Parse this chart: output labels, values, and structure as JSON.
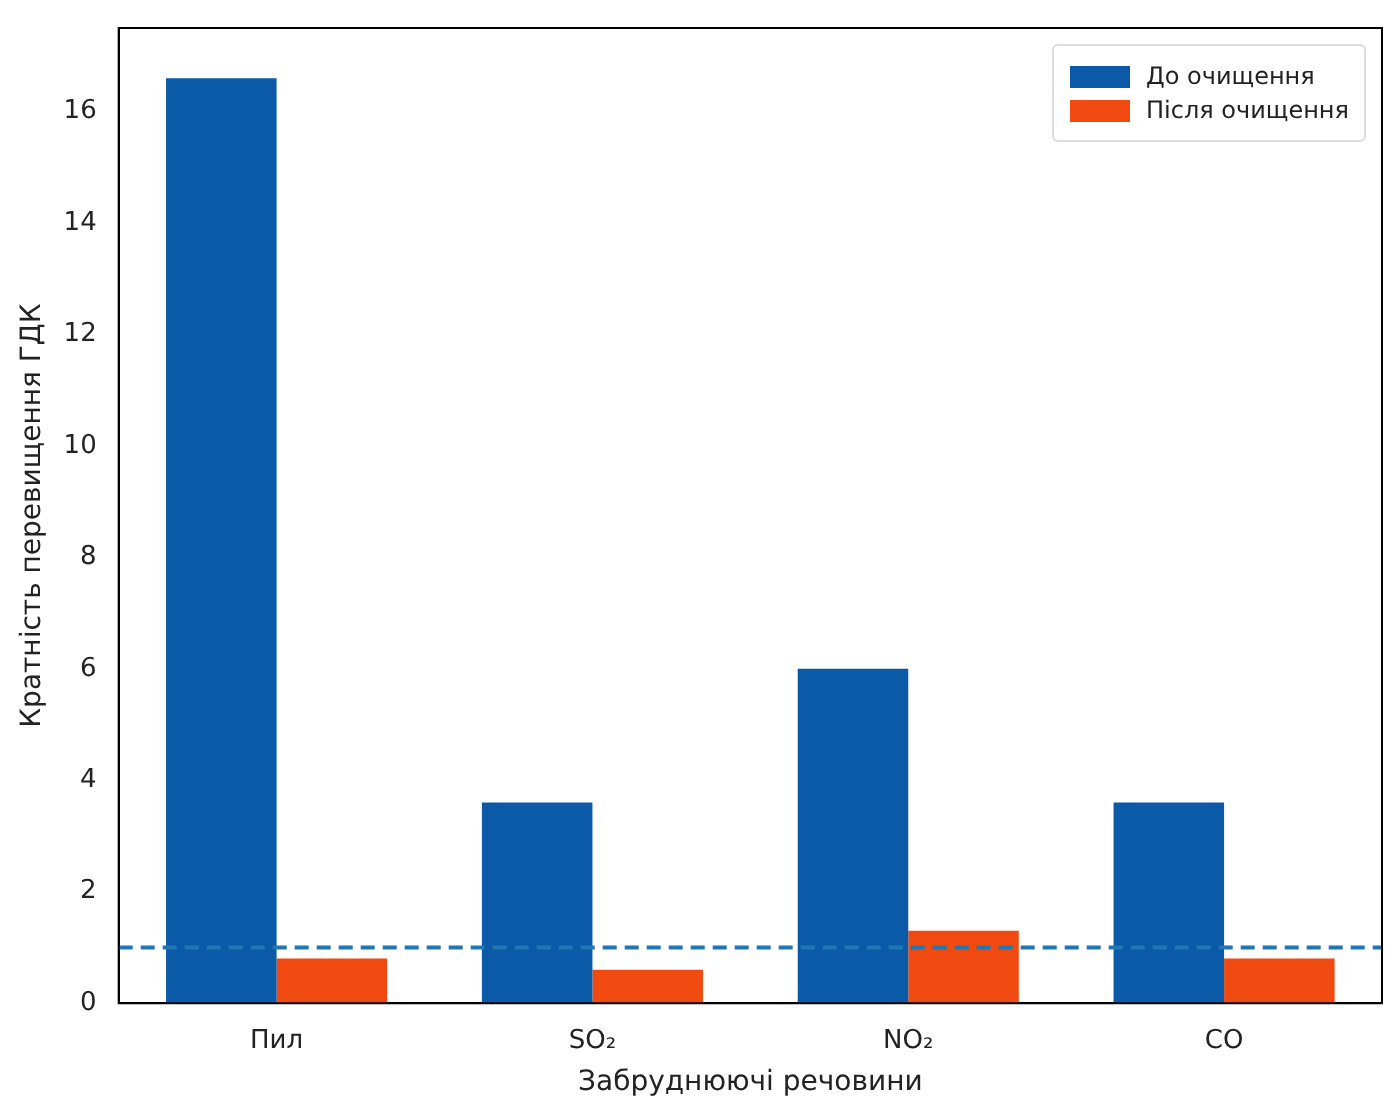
{
  "chart_data": {
    "type": "bar",
    "xlabel": "Забруднюючі речовини",
    "ylabel": "Кратність перевищення ГДК",
    "categories": [
      "Пил",
      "SO₂",
      "NO₂",
      "CO"
    ],
    "series": [
      {
        "name": "До очищення",
        "color": "#0a5aa8",
        "values": [
          16.6,
          3.6,
          6.0,
          3.6
        ]
      },
      {
        "name": "Після очищення",
        "color": "#f04a10",
        "values": [
          0.8,
          0.6,
          1.3,
          0.8
        ]
      }
    ],
    "ylim": [
      0,
      17.5
    ],
    "yticks": [
      0,
      2,
      4,
      6,
      8,
      10,
      12,
      14,
      16
    ],
    "grid": false,
    "legend": "top right",
    "ref_lines": [
      {
        "axis": "y",
        "value": 1,
        "color": "#1f77b4",
        "line_style": "dashed"
      }
    ]
  }
}
